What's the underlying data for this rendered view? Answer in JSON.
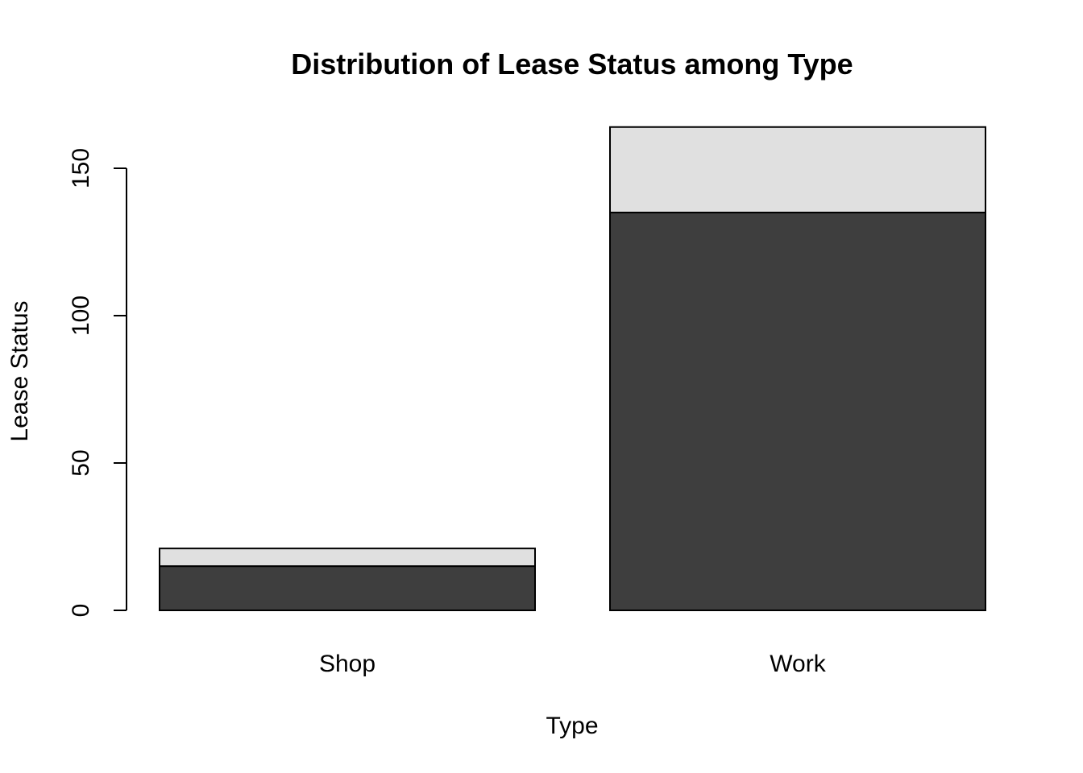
{
  "chart_data": {
    "type": "bar",
    "stacked": true,
    "title": "Distribution of Lease Status among Type",
    "xlabel": "Type",
    "ylabel": "Lease Status",
    "categories": [
      "Shop",
      "Work"
    ],
    "series": [
      {
        "values": [
          15,
          135
        ],
        "color": "#3e3e3e"
      },
      {
        "values": [
          6,
          29
        ],
        "color": "#e0e0e0"
      }
    ],
    "yticks": [
      0,
      50,
      100,
      150
    ],
    "ylim": [
      0,
      164
    ],
    "grid": false,
    "legend": "none"
  }
}
